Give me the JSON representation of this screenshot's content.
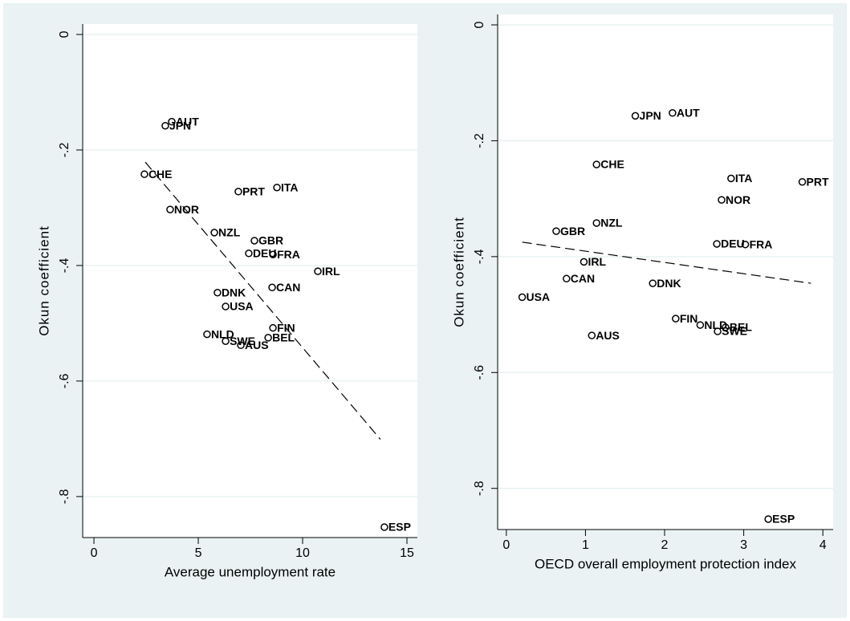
{
  "chart_data": [
    {
      "type": "scatter",
      "x_label": "Average unemployment rate",
      "y_label": "Okun coefficient",
      "color": "#000000",
      "labels": [
        "AUT",
        "JPN",
        "CHE",
        "NOR",
        "PRT",
        "ITA",
        "NZL",
        "GBR",
        "DEU",
        "FRA",
        "IRL",
        "CAN",
        "DNK",
        "USA",
        "FIN",
        "BEL",
        "NLD",
        "SWE",
        "AUS",
        "ESP"
      ],
      "x": [
        3.73,
        3.42,
        2.42,
        3.65,
        6.92,
        8.77,
        5.77,
        7.69,
        7.42,
        8.58,
        10.73,
        8.54,
        5.92,
        6.31,
        8.58,
        8.35,
        5.42,
        6.31,
        7.04,
        13.92
      ],
      "y": [
        -0.151,
        -0.158,
        -0.242,
        -0.303,
        -0.272,
        -0.265,
        -0.343,
        -0.357,
        -0.379,
        -0.381,
        -0.41,
        -0.438,
        -0.447,
        -0.471,
        -0.508,
        -0.525,
        -0.519,
        -0.531,
        -0.538,
        -0.853
      ],
      "fit": {
        "x": [
          2.46,
          13.73
        ],
        "y": [
          -0.221,
          -0.701
        ]
      },
      "xlim": [
        -0.54,
        15.5
      ],
      "ylim": [
        -0.871,
        0.018
      ],
      "xticks": [
        0,
        5,
        10,
        15
      ],
      "yticks": [
        0,
        {
          "value": -0.2,
          "label": "-.2"
        },
        {
          "value": -0.4,
          "label": "-.4"
        },
        {
          "value": -0.6,
          "label": "-.6"
        },
        {
          "value": -0.8,
          "label": "-.8"
        }
      ],
      "grid": true
    },
    {
      "type": "scatter",
      "x_label": "OECD overall employment protection index",
      "y_label": "Okun coefficient",
      "color": "#000000",
      "labels": [
        "JPN",
        "AUT",
        "CHE",
        "ITA",
        "PRT",
        "NOR",
        "NZL",
        "GBR",
        "DEU",
        "FRA",
        "IRL",
        "CAN",
        "DNK",
        "USA",
        "FIN",
        "NLD",
        "BEL",
        "SWE",
        "AUS",
        "ESP"
      ],
      "x": [
        1.63,
        2.1,
        1.14,
        2.84,
        3.74,
        2.72,
        1.14,
        0.63,
        2.66,
        3.02,
        0.98,
        0.76,
        1.85,
        0.2,
        2.14,
        2.45,
        2.77,
        2.67,
        1.08,
        3.31
      ],
      "y": [
        -0.157,
        -0.152,
        -0.241,
        -0.265,
        -0.271,
        -0.302,
        -0.342,
        -0.356,
        -0.378,
        -0.379,
        -0.409,
        -0.438,
        -0.446,
        -0.47,
        -0.507,
        -0.518,
        -0.522,
        -0.529,
        -0.536,
        -0.853
      ],
      "fit": {
        "x": [
          0.2,
          3.85
        ],
        "y": [
          -0.375,
          -0.446
        ]
      },
      "xlim": [
        -0.11,
        4.13
      ],
      "ylim": [
        -0.871,
        0.018
      ],
      "xticks": [
        0,
        1,
        2,
        3,
        4
      ],
      "yticks": [
        0,
        {
          "value": -0.2,
          "label": "-.2"
        },
        {
          "value": -0.4,
          "label": "-.4"
        },
        {
          "value": -0.6,
          "label": "-.6"
        },
        {
          "value": -0.8,
          "label": "-.8"
        }
      ],
      "grid": true
    }
  ]
}
